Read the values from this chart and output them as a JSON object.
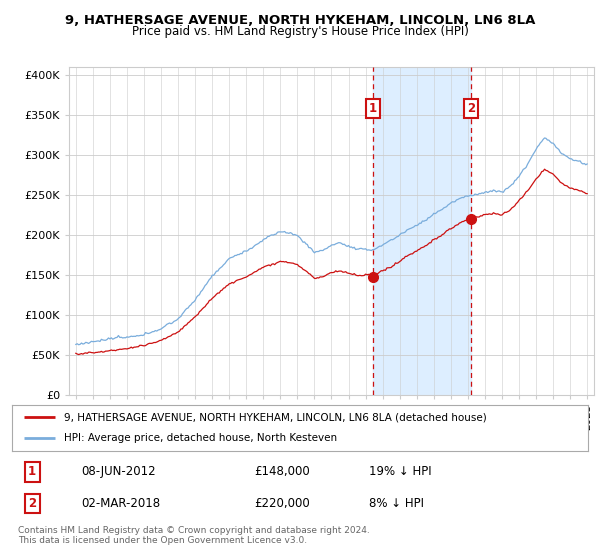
{
  "title1": "9, HATHERSAGE AVENUE, NORTH HYKEHAM, LINCOLN, LN6 8LA",
  "title2": "Price paid vs. HM Land Registry's House Price Index (HPI)",
  "legend_line1": "9, HATHERSAGE AVENUE, NORTH HYKEHAM, LINCOLN, LN6 8LA (detached house)",
  "legend_line2": "HPI: Average price, detached house, North Kesteven",
  "annotation1_label": "1",
  "annotation1_date": "08-JUN-2012",
  "annotation1_price": "£148,000",
  "annotation1_hpi": "19% ↓ HPI",
  "annotation2_label": "2",
  "annotation2_date": "02-MAR-2018",
  "annotation2_price": "£220,000",
  "annotation2_hpi": "8% ↓ HPI",
  "footnote1": "Contains HM Land Registry data © Crown copyright and database right 2024.",
  "footnote2": "This data is licensed under the Open Government Licence v3.0.",
  "sale1_x": 2012.44,
  "sale1_y": 148000,
  "sale2_x": 2018.17,
  "sale2_y": 220000,
  "hpi_color": "#7aaddc",
  "price_color": "#cc1111",
  "bg_color": "#ffffff",
  "span_color": "#ddeeff",
  "vline_color": "#cc1111",
  "annotation_box_color": "#cc1111",
  "grid_color": "#cccccc",
  "ylim": [
    0,
    410000
  ],
  "xlim_start": 1994.6,
  "xlim_end": 2025.4
}
